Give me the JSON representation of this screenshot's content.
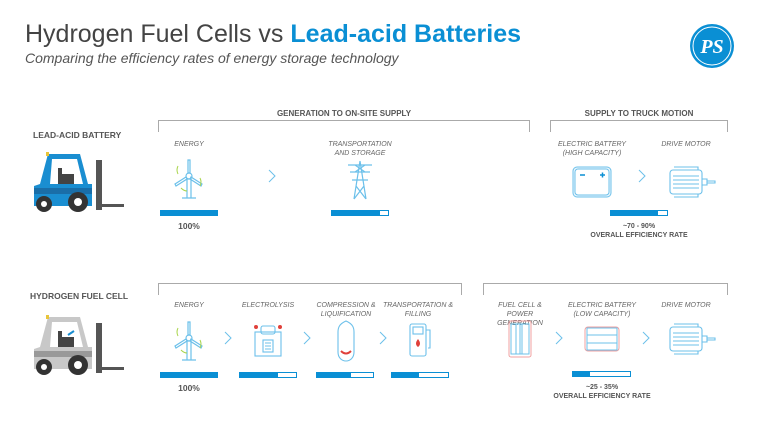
{
  "header": {
    "title_plain": "Hydrogen Fuel Cells vs ",
    "title_highlight": "Lead-acid Batteries",
    "subtitle": "Comparing the efficiency rates of energy storage technology",
    "logo_text": "PS"
  },
  "colors": {
    "accent": "#0a8fd4",
    "text": "#444444",
    "bracket": "#aaaaaa",
    "hydrogen_accent": "#e0403a"
  },
  "lead_acid": {
    "label": "LEAD-ACID BATTERY",
    "sections": [
      "GENERATION TO ON-SITE SUPPLY",
      "SUPPLY TO TRUCK MOTION"
    ],
    "steps": [
      {
        "label": "ENERGY",
        "icon": "wind-turbine-icon",
        "efficiency": 1.0,
        "value_label": "100%"
      },
      {
        "label": "TRANSPORTATION AND STORAGE",
        "icon": "power-pylon-icon",
        "efficiency": 0.85
      },
      {
        "label": "ELECTRIC BATTERY (HIGH CAPACITY)",
        "icon": "battery-icon"
      },
      {
        "label": "DRIVE MOTOR",
        "icon": "motor-icon"
      }
    ],
    "overall": {
      "efficiency": 0.84,
      "range": "~70 - 90%",
      "label": "OVERALL EFFICIENCY RATE"
    }
  },
  "hydrogen": {
    "label": "HYDROGEN FUEL CELL",
    "steps": [
      {
        "label": "ENERGY",
        "icon": "wind-turbine-icon",
        "efficiency": 1.0,
        "value_label": "100%"
      },
      {
        "label": "ELECTROLYSIS",
        "icon": "electrolyser-icon",
        "efficiency": 0.68
      },
      {
        "label": "COMPRESSION & LIQUIFICATION",
        "icon": "tank-icon",
        "efficiency": 0.61
      },
      {
        "label": "TRANSPORTATION & FILLING",
        "icon": "fuel-pump-icon",
        "efficiency": 0.48
      },
      {
        "label": "FUEL CELL & POWER GENERATION",
        "icon": "fuel-cell-icon"
      },
      {
        "label": "ELECTRIC BATTERY (LOW CAPACITY)",
        "icon": "battery-icon"
      },
      {
        "label": "DRIVE MOTOR",
        "icon": "motor-icon"
      }
    ],
    "overall": {
      "efficiency": 0.29,
      "range": "~25 - 35%",
      "label": "OVERALL EFFICIENCY RATE"
    }
  }
}
